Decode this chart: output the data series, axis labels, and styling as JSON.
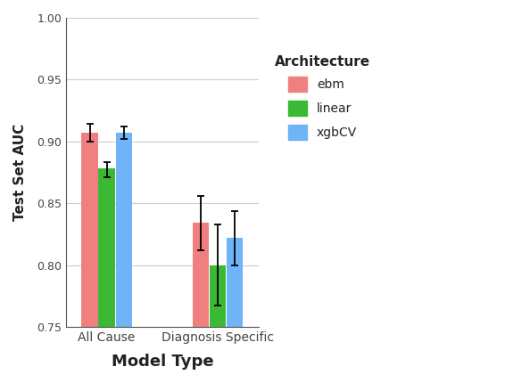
{
  "groups": [
    "All Cause",
    "Diagnosis Specific"
  ],
  "architectures": [
    "ebm",
    "linear",
    "xgbCV"
  ],
  "bar_colors": [
    "#F08080",
    "#3CB934",
    "#6EB4F7"
  ],
  "values": {
    "All Cause": [
      0.907,
      0.878,
      0.907
    ],
    "Diagnosis Specific": [
      0.834,
      0.8,
      0.822
    ]
  },
  "errors_low": {
    "All Cause": [
      0.007,
      0.007,
      0.005
    ],
    "Diagnosis Specific": [
      0.022,
      0.033,
      0.022
    ]
  },
  "errors_high": {
    "All Cause": [
      0.007,
      0.005,
      0.005
    ],
    "Diagnosis Specific": [
      0.022,
      0.033,
      0.022
    ]
  },
  "ylim": [
    0.75,
    1.0
  ],
  "yticks": [
    0.75,
    0.8,
    0.85,
    0.9,
    0.95,
    1.0
  ],
  "xlabel": "Model Type",
  "ylabel": "Test Set AUC",
  "legend_title": "Architecture",
  "background_color": "#FFFFFF",
  "panel_background": "#FFFFFF",
  "grid_color": "#CCCCCC",
  "bar_width": 0.22,
  "group_positions": [
    1.0,
    2.5
  ]
}
